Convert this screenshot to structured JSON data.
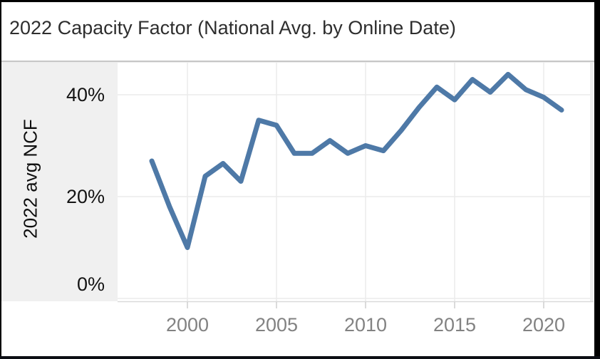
{
  "header": {
    "title": "2022 Capacity Factor (National Avg. by Online Date)"
  },
  "chart_data": {
    "type": "line",
    "title": "2022 Capacity Factor (National Avg. by Online Date)",
    "xlabel": "",
    "ylabel": "2022 avg NCF",
    "x": [
      1998,
      1999,
      2000,
      2001,
      2002,
      2003,
      2004,
      2005,
      2006,
      2007,
      2008,
      2009,
      2010,
      2011,
      2012,
      2013,
      2014,
      2015,
      2016,
      2017,
      2018,
      2019,
      2020,
      2021
    ],
    "values": [
      27,
      18,
      10,
      24,
      26.5,
      23,
      35,
      34,
      28.5,
      28.5,
      31,
      28.5,
      30,
      29,
      33,
      37.5,
      41.5,
      39,
      43,
      40.5,
      44,
      41,
      39.5,
      37
    ],
    "y_ticks": [
      {
        "label": "0%",
        "value": 0
      },
      {
        "label": "20%",
        "value": 20
      },
      {
        "label": "40%",
        "value": 40
      }
    ],
    "x_ticks": [
      {
        "label": "2000",
        "value": 2000
      },
      {
        "label": "2005",
        "value": 2005
      },
      {
        "label": "2010",
        "value": 2010
      },
      {
        "label": "2015",
        "value": 2015
      },
      {
        "label": "2020",
        "value": 2020
      }
    ],
    "ylim": [
      0,
      46
    ],
    "xlim": [
      1996,
      2023
    ],
    "grid": true,
    "legend": "none",
    "line_color": "#4e79a7"
  }
}
